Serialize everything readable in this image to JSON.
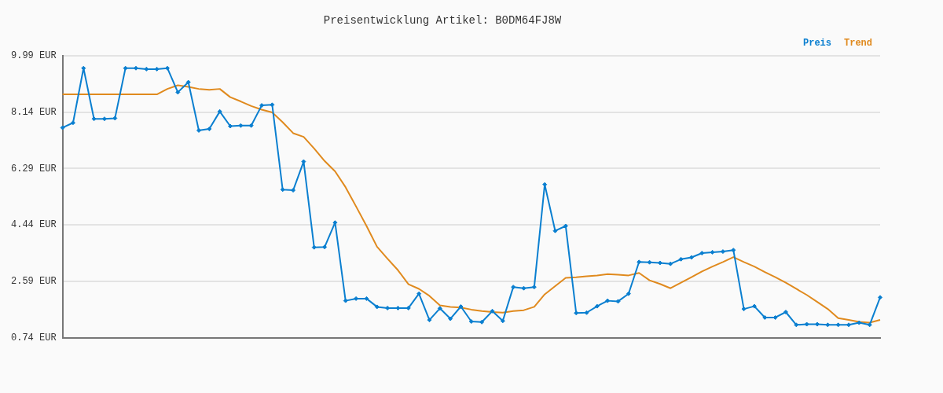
{
  "chart_data": {
    "type": "line",
    "title": "Preisentwicklung Artikel: B0DM64FJ8W",
    "categories": [
      null,
      null,
      null,
      null,
      null,
      null,
      null,
      null,
      null,
      null,
      null,
      null,
      null,
      null,
      null,
      null,
      null,
      null,
      null,
      null,
      null,
      null,
      null,
      null,
      null,
      null,
      null,
      null,
      null,
      null,
      null,
      null,
      null,
      null,
      null,
      null,
      null,
      null,
      null,
      null,
      null,
      null,
      null,
      null,
      null,
      null,
      null,
      null,
      null,
      null,
      null,
      null,
      null,
      null,
      null,
      null,
      null,
      null,
      null,
      null,
      null,
      null,
      null,
      null,
      null,
      null,
      null,
      null,
      null,
      null,
      null,
      null,
      null,
      null,
      null,
      null,
      null,
      null,
      null
    ],
    "series": [
      {
        "name": "Preis",
        "color": "#0a7fd0",
        "marker": "diamond",
        "values": [
          7.63,
          7.79,
          9.58,
          7.92,
          7.92,
          7.94,
          9.58,
          9.58,
          9.55,
          9.55,
          9.58,
          8.79,
          9.12,
          7.54,
          7.59,
          8.16,
          7.68,
          7.7,
          7.7,
          8.36,
          8.38,
          5.6,
          5.58,
          6.52,
          3.71,
          3.72,
          4.52,
          1.96,
          2.03,
          2.03,
          1.76,
          1.72,
          1.72,
          1.72,
          2.19,
          1.33,
          1.71,
          1.37,
          1.77,
          1.28,
          1.26,
          1.62,
          1.3,
          2.41,
          2.37,
          2.41,
          5.77,
          4.25,
          4.41,
          1.56,
          1.57,
          1.78,
          1.96,
          1.94,
          2.19,
          3.23,
          3.22,
          3.2,
          3.17,
          3.32,
          3.38,
          3.52,
          3.55,
          3.57,
          3.62,
          1.69,
          1.78,
          1.41,
          1.41,
          1.59,
          1.17,
          1.19,
          1.19,
          1.17,
          1.17,
          1.17,
          1.24,
          1.17,
          2.07
        ]
      },
      {
        "name": "Trend",
        "color": "#e08a1e",
        "marker": "none",
        "values": [
          8.72,
          8.72,
          8.72,
          8.72,
          8.72,
          8.72,
          8.72,
          8.72,
          8.72,
          8.72,
          8.9,
          9.02,
          8.97,
          8.9,
          8.87,
          8.9,
          8.63,
          8.49,
          8.34,
          8.22,
          8.13,
          7.81,
          7.45,
          7.33,
          6.95,
          6.54,
          6.2,
          5.68,
          5.05,
          4.41,
          3.73,
          3.34,
          2.96,
          2.5,
          2.35,
          2.12,
          1.81,
          1.76,
          1.74,
          1.67,
          1.62,
          1.59,
          1.57,
          1.62,
          1.65,
          1.76,
          2.17,
          2.44,
          2.71,
          2.73,
          2.76,
          2.79,
          2.83,
          2.81,
          2.79,
          2.87,
          2.63,
          2.51,
          2.37,
          2.55,
          2.73,
          2.92,
          3.08,
          3.23,
          3.39,
          3.23,
          3.08,
          2.9,
          2.73,
          2.55,
          2.35,
          2.15,
          1.92,
          1.69,
          1.39,
          1.33,
          1.27,
          1.24,
          1.33
        ]
      }
    ],
    "ylim": [
      0.74,
      9.99
    ],
    "yticks": [
      {
        "value": 0.74,
        "label": "0.74 EUR"
      },
      {
        "value": 2.59,
        "label": "2.59 EUR"
      },
      {
        "value": 4.44,
        "label": "4.44 EUR"
      },
      {
        "value": 6.29,
        "label": "6.29 EUR"
      },
      {
        "value": 8.14,
        "label": "8.14 EUR"
      },
      {
        "value": 9.99,
        "label": "9.99 EUR"
      }
    ],
    "grid": "y",
    "legend": "top right",
    "tick_labels": "y",
    "line_style": "solid"
  }
}
